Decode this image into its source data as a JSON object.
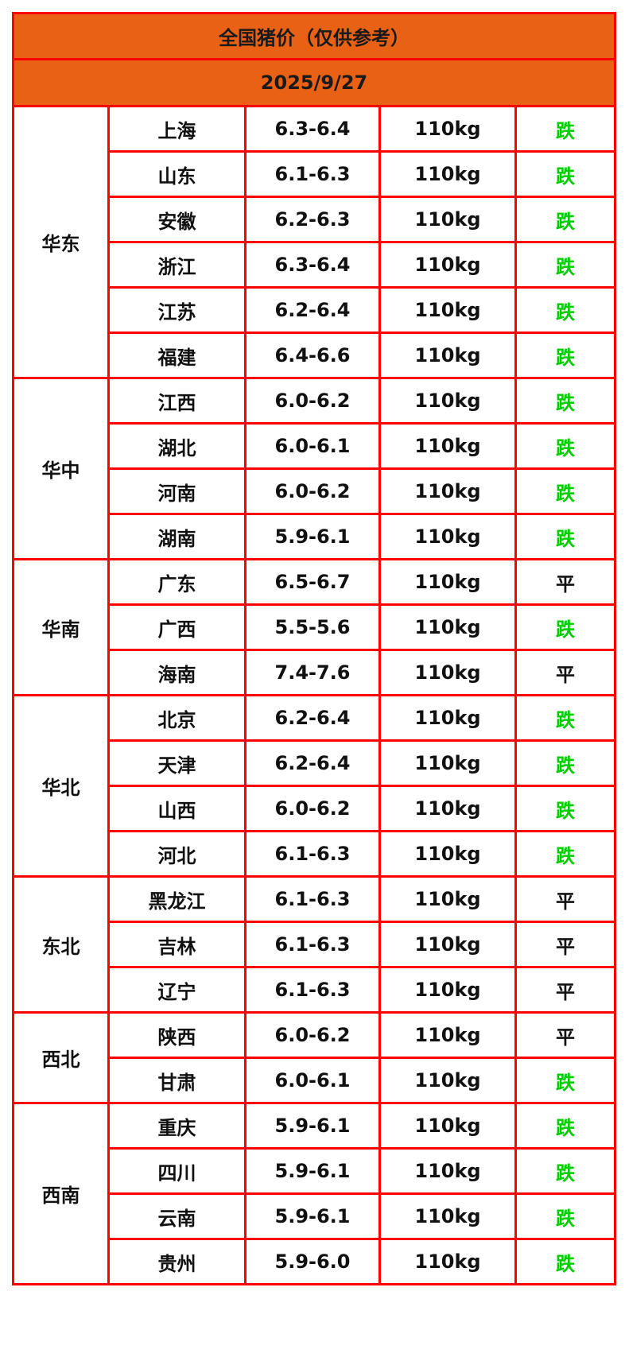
{
  "title": "全国猪价（仅供参考）",
  "date": "2025/9/27",
  "colors": {
    "header_bg": "#e96114",
    "border": "#ff0000",
    "fall": "#00cc00",
    "flat": "#111111"
  },
  "regions": [
    {
      "name": "华东",
      "rows": [
        {
          "province": "上海",
          "price": "6.3-6.4",
          "weight": "110kg",
          "trend": "跌"
        },
        {
          "province": "山东",
          "price": "6.1-6.3",
          "weight": "110kg",
          "trend": "跌"
        },
        {
          "province": "安徽",
          "price": "6.2-6.3",
          "weight": "110kg",
          "trend": "跌"
        },
        {
          "province": "浙江",
          "price": "6.3-6.4",
          "weight": "110kg",
          "trend": "跌"
        },
        {
          "province": "江苏",
          "price": "6.2-6.4",
          "weight": "110kg",
          "trend": "跌"
        },
        {
          "province": "福建",
          "price": "6.4-6.6",
          "weight": "110kg",
          "trend": "跌"
        }
      ]
    },
    {
      "name": "华中",
      "rows": [
        {
          "province": "江西",
          "price": "6.0-6.2",
          "weight": "110kg",
          "trend": "跌"
        },
        {
          "province": "湖北",
          "price": "6.0-6.1",
          "weight": "110kg",
          "trend": "跌"
        },
        {
          "province": "河南",
          "price": "6.0-6.2",
          "weight": "110kg",
          "trend": "跌"
        },
        {
          "province": "湖南",
          "price": "5.9-6.1",
          "weight": "110kg",
          "trend": "跌"
        }
      ]
    },
    {
      "name": "华南",
      "rows": [
        {
          "province": "广东",
          "price": "6.5-6.7",
          "weight": "110kg",
          "trend": "平"
        },
        {
          "province": "广西",
          "price": "5.5-5.6",
          "weight": "110kg",
          "trend": "跌"
        },
        {
          "province": "海南",
          "price": "7.4-7.6",
          "weight": "110kg",
          "trend": "平"
        }
      ]
    },
    {
      "name": "华北",
      "rows": [
        {
          "province": "北京",
          "price": "6.2-6.4",
          "weight": "110kg",
          "trend": "跌"
        },
        {
          "province": "天津",
          "price": "6.2-6.4",
          "weight": "110kg",
          "trend": "跌"
        },
        {
          "province": "山西",
          "price": "6.0-6.2",
          "weight": "110kg",
          "trend": "跌"
        },
        {
          "province": "河北",
          "price": "6.1-6.3",
          "weight": "110kg",
          "trend": "跌"
        }
      ]
    },
    {
      "name": "东北",
      "rows": [
        {
          "province": "黑龙江",
          "price": "6.1-6.3",
          "weight": "110kg",
          "trend": "平"
        },
        {
          "province": "吉林",
          "price": "6.1-6.3",
          "weight": "110kg",
          "trend": "平"
        },
        {
          "province": "辽宁",
          "price": "6.1-6.3",
          "weight": "110kg",
          "trend": "平"
        }
      ]
    },
    {
      "name": "西北",
      "rows": [
        {
          "province": "陕西",
          "price": "6.0-6.2",
          "weight": "110kg",
          "trend": "平"
        },
        {
          "province": "甘肃",
          "price": "6.0-6.1",
          "weight": "110kg",
          "trend": "跌"
        }
      ]
    },
    {
      "name": "西南",
      "rows": [
        {
          "province": "重庆",
          "price": "5.9-6.1",
          "weight": "110kg",
          "trend": "跌"
        },
        {
          "province": "四川",
          "price": "5.9-6.1",
          "weight": "110kg",
          "trend": "跌"
        },
        {
          "province": "云南",
          "price": "5.9-6.1",
          "weight": "110kg",
          "trend": "跌"
        },
        {
          "province": "贵州",
          "price": "5.9-6.0",
          "weight": "110kg",
          "trend": "跌"
        }
      ]
    }
  ]
}
